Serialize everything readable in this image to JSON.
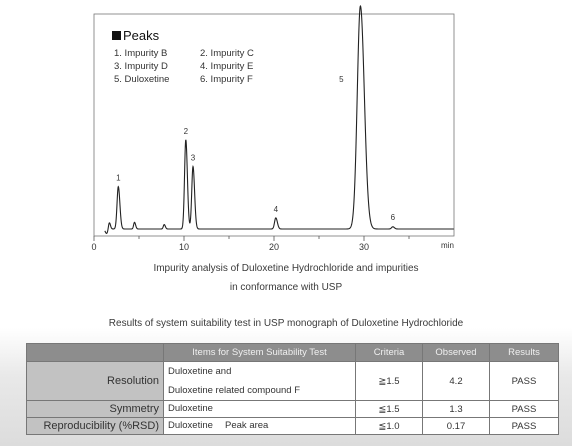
{
  "chart_data": {
    "type": "line",
    "xlabel": "",
    "x_unit": "min",
    "xlim": [
      0,
      40
    ],
    "x_ticks": [
      "0",
      "10",
      "20",
      "30"
    ],
    "legend": {
      "title": "Peaks",
      "items": [
        "1. Impurity B",
        "2. Impurity C",
        "3. Impurity D",
        "4. Impurity E",
        "5. Duloxetine",
        "6. Impurity F"
      ]
    },
    "peaks": [
      {
        "label": "1",
        "rt": 2.7,
        "height": 0.19
      },
      {
        "label": "2",
        "rt": 10.2,
        "height": 0.4
      },
      {
        "label": "3",
        "rt": 11.0,
        "height": 0.28
      },
      {
        "label": "4",
        "rt": 20.2,
        "height": 0.05
      },
      {
        "label": "5",
        "rt": 29.6,
        "height": 1.0
      },
      {
        "label": "6",
        "rt": 33.2,
        "height": 0.01
      }
    ],
    "minor_peaks": [
      {
        "rt": 1.7,
        "height": 0.03
      },
      {
        "rt": 4.5,
        "height": 0.03
      },
      {
        "rt": 7.8,
        "height": 0.02
      }
    ],
    "grid": false
  },
  "caption": {
    "line1": "Impurity analysis of Duloxetine Hydrochloride and impurities",
    "line2": "in conformance with USP"
  },
  "table": {
    "title": "Results of system suitability test in USP monograph of Duloxetine Hydrochloride",
    "headers": [
      "",
      "Items for System Suitability Test",
      "Criteria",
      "Observed",
      "Results"
    ],
    "rows": [
      {
        "name": "Resolution",
        "items": [
          "Duloxetine and",
          "Duloxetine related compound F"
        ],
        "criteria": "≧1.5",
        "observed": "4.2",
        "result": "PASS"
      },
      {
        "name": "Symmetry",
        "items": [
          "Duloxetine"
        ],
        "criteria": "≦1.5",
        "observed": "1.3",
        "result": "PASS"
      },
      {
        "name": "Reproducibility (%RSD)",
        "items": [
          "Duloxetine　 Peak area"
        ],
        "criteria": "≦1.0",
        "observed": "0.17",
        "result": "PASS"
      }
    ]
  }
}
